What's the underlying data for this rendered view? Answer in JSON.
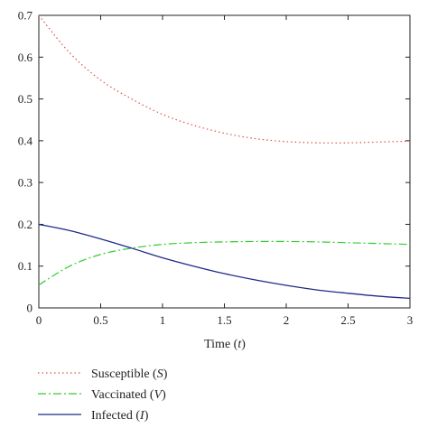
{
  "chart_data": {
    "type": "line",
    "xlabel": "Time (t)",
    "ylabel": "",
    "xlim": [
      0,
      3
    ],
    "ylim": [
      0,
      0.7
    ],
    "xticks": [
      "0",
      "0.5",
      "1",
      "1.5",
      "2",
      "2.5",
      "3"
    ],
    "yticks": [
      "0",
      "0.1",
      "0.2",
      "0.3",
      "0.4",
      "0.5",
      "0.6",
      "0.7"
    ],
    "grid": false,
    "legend_position": "below",
    "x": [
      0,
      0.25,
      0.5,
      0.75,
      1,
      1.25,
      1.5,
      1.75,
      2,
      2.25,
      2.5,
      2.75,
      3
    ],
    "series": [
      {
        "name": "Susceptible (S)",
        "color": "#d9534f",
        "style": "dotted",
        "values": [
          0.7,
          0.61,
          0.545,
          0.5,
          0.463,
          0.437,
          0.418,
          0.405,
          0.398,
          0.395,
          0.395,
          0.397,
          0.399
        ]
      },
      {
        "name": "Vaccinated (V)",
        "color": "#33cc33",
        "style": "dashdot",
        "values": [
          0.055,
          0.1,
          0.128,
          0.143,
          0.152,
          0.156,
          0.158,
          0.159,
          0.159,
          0.158,
          0.156,
          0.154,
          0.152
        ]
      },
      {
        "name": "Infected (I)",
        "color": "#1f2a8a",
        "style": "solid",
        "values": [
          0.2,
          0.185,
          0.165,
          0.143,
          0.12,
          0.1,
          0.082,
          0.067,
          0.054,
          0.043,
          0.035,
          0.028,
          0.023
        ]
      }
    ]
  },
  "legend": {
    "items": [
      {
        "prefix": "Susceptible (",
        "var": "S",
        "suffix": ")"
      },
      {
        "prefix": "Vaccinated (",
        "var": "V",
        "suffix": ")"
      },
      {
        "prefix": "Infected (",
        "var": "I",
        "suffix": ")"
      }
    ]
  },
  "axis_label": {
    "prefix": "Time (",
    "var": "t",
    "suffix": ")"
  }
}
